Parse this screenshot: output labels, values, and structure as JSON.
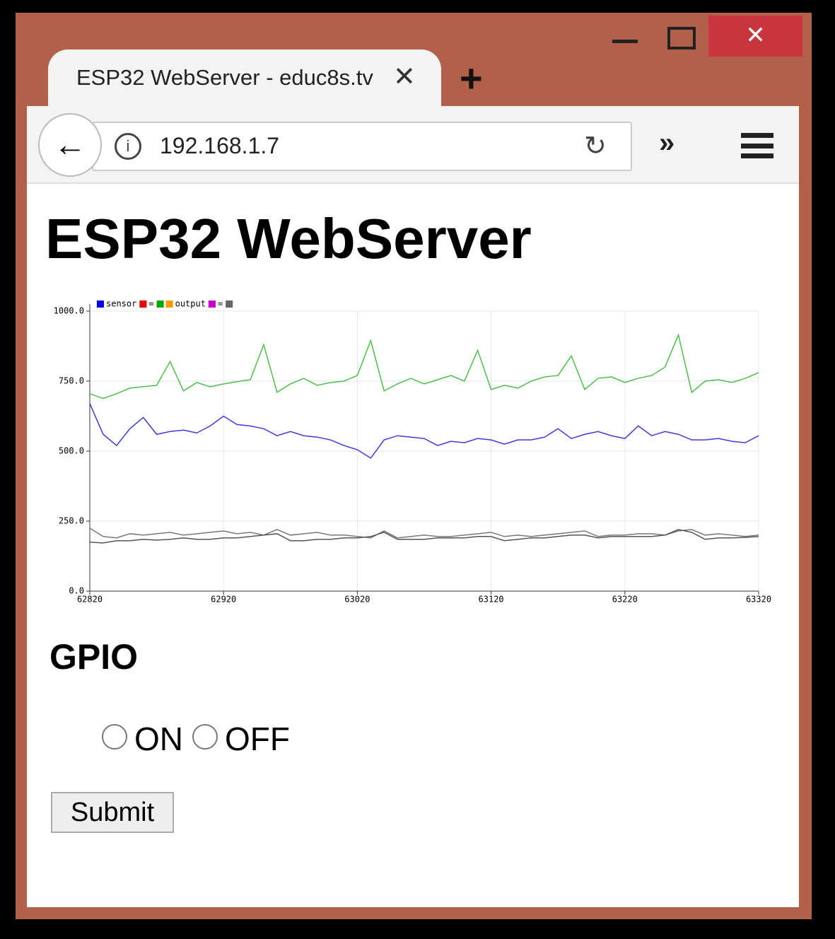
{
  "browser": {
    "tab_title": "ESP32 WebServer - educ8s.tv",
    "address": "192.168.1.7"
  },
  "page": {
    "heading": "ESP32 WebServer",
    "section": "GPIO",
    "options": [
      "ON",
      "OFF"
    ],
    "button": "Submit"
  },
  "chart_data": {
    "type": "line",
    "legend": [
      {
        "color": "#0000ee",
        "label": "sensor"
      },
      {
        "color": "#ee0000",
        "label": "="
      },
      {
        "color": "#00aa00"
      },
      {
        "color": "#ff9900",
        "label": "output"
      },
      {
        "color": "#cc00cc",
        "label": "="
      },
      {
        "color": "#666666"
      }
    ],
    "x": [
      62820,
      62830,
      62840,
      62850,
      62860,
      62870,
      62880,
      62890,
      62900,
      62910,
      62920,
      62930,
      62940,
      62950,
      62960,
      62970,
      62980,
      62990,
      63000,
      63010,
      63020,
      63030,
      63040,
      63050,
      63060,
      63070,
      63080,
      63090,
      63100,
      63110,
      63120,
      63130,
      63140,
      63150,
      63160,
      63170,
      63180,
      63190,
      63200,
      63210,
      63220,
      63230,
      63240,
      63250,
      63260,
      63270,
      63280,
      63290,
      63300,
      63310,
      63320
    ],
    "series": [
      {
        "color": "#4cbf4c",
        "values": [
          705,
          688,
          705,
          725,
          730,
          735,
          820,
          715,
          745,
          730,
          740,
          748,
          755,
          880,
          710,
          740,
          760,
          735,
          745,
          750,
          770,
          895,
          715,
          740,
          760,
          740,
          755,
          770,
          750,
          860,
          720,
          735,
          725,
          750,
          765,
          770,
          840,
          720,
          760,
          765,
          745,
          760,
          770,
          800,
          915,
          710,
          750,
          755,
          745,
          760,
          780
        ]
      },
      {
        "color": "#3b3bdd",
        "values": [
          670,
          560,
          520,
          580,
          620,
          560,
          570,
          575,
          565,
          590,
          625,
          595,
          590,
          580,
          555,
          570,
          555,
          550,
          540,
          520,
          505,
          475,
          540,
          555,
          550,
          545,
          520,
          535,
          530,
          545,
          540,
          525,
          540,
          540,
          550,
          580,
          545,
          560,
          570,
          555,
          545,
          590,
          555,
          570,
          560,
          540,
          540,
          545,
          535,
          530,
          555
        ]
      },
      {
        "color": "#777777",
        "values": [
          225,
          195,
          190,
          205,
          200,
          205,
          210,
          200,
          205,
          210,
          215,
          205,
          210,
          200,
          220,
          200,
          205,
          210,
          200,
          200,
          195,
          190,
          215,
          190,
          195,
          200,
          195,
          195,
          200,
          205,
          210,
          195,
          200,
          195,
          200,
          205,
          210,
          215,
          195,
          200,
          200,
          205,
          205,
          200,
          215,
          220,
          200,
          205,
          200,
          195,
          200
        ]
      },
      {
        "color": "#555555",
        "values": [
          175,
          172,
          180,
          180,
          185,
          182,
          185,
          190,
          185,
          185,
          190,
          190,
          195,
          200,
          205,
          180,
          180,
          185,
          185,
          190,
          190,
          195,
          210,
          185,
          185,
          185,
          190,
          190,
          190,
          195,
          195,
          180,
          185,
          190,
          190,
          195,
          200,
          200,
          190,
          195,
          195,
          195,
          195,
          200,
          220,
          210,
          185,
          190,
          190,
          192,
          195
        ]
      }
    ],
    "xlim": [
      62820,
      63320
    ],
    "xticks": [
      62820,
      62920,
      63020,
      63120,
      63220,
      63320
    ],
    "ylim": [
      0,
      1000
    ],
    "yticks": [
      {
        "value": 0,
        "label": "0.0"
      },
      {
        "value": 250,
        "label": "250.0"
      },
      {
        "value": 500,
        "label": "500.0"
      },
      {
        "value": 750,
        "label": "750.0"
      },
      {
        "value": 1000,
        "label": "1000.0"
      }
    ],
    "grid": true
  }
}
